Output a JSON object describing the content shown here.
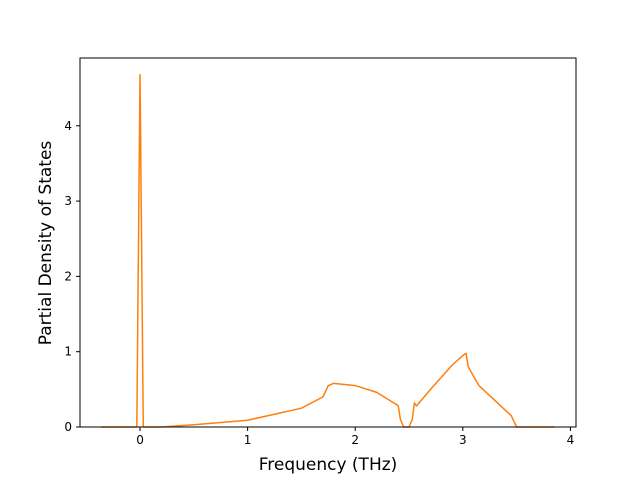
{
  "chart_data": {
    "type": "line",
    "x_label": "Frequency (THz)",
    "y_label": "Partial Density of States",
    "x": [
      -0.36,
      -0.03,
      0,
      0.03,
      0.2,
      0.5,
      1.0,
      1.5,
      1.7,
      1.75,
      1.8,
      2.0,
      2.2,
      2.38,
      2.4,
      2.42,
      2.45,
      2.5,
      2.53,
      2.55,
      2.57,
      2.7,
      2.9,
      3.0,
      3.03,
      3.05,
      3.15,
      3.3,
      3.45,
      3.5,
      3.85
    ],
    "series": [
      {
        "color": "#ff7f0e",
        "values": [
          0,
          0,
          4.68,
          0,
          0,
          0.03,
          0.09,
          0.25,
          0.4,
          0.55,
          0.58,
          0.55,
          0.46,
          0.3,
          0.28,
          0.1,
          0,
          0,
          0.1,
          0.32,
          0.28,
          0.5,
          0.82,
          0.95,
          0.98,
          0.8,
          0.55,
          0.35,
          0.15,
          0,
          0
        ]
      }
    ],
    "xlim": [
      -0.558,
      4.052
    ],
    "ylim": [
      0,
      4.9
    ],
    "xticks": [
      0,
      1,
      2,
      3,
      4
    ],
    "yticks": [
      0,
      1,
      2,
      3,
      4
    ],
    "grid": false
  }
}
